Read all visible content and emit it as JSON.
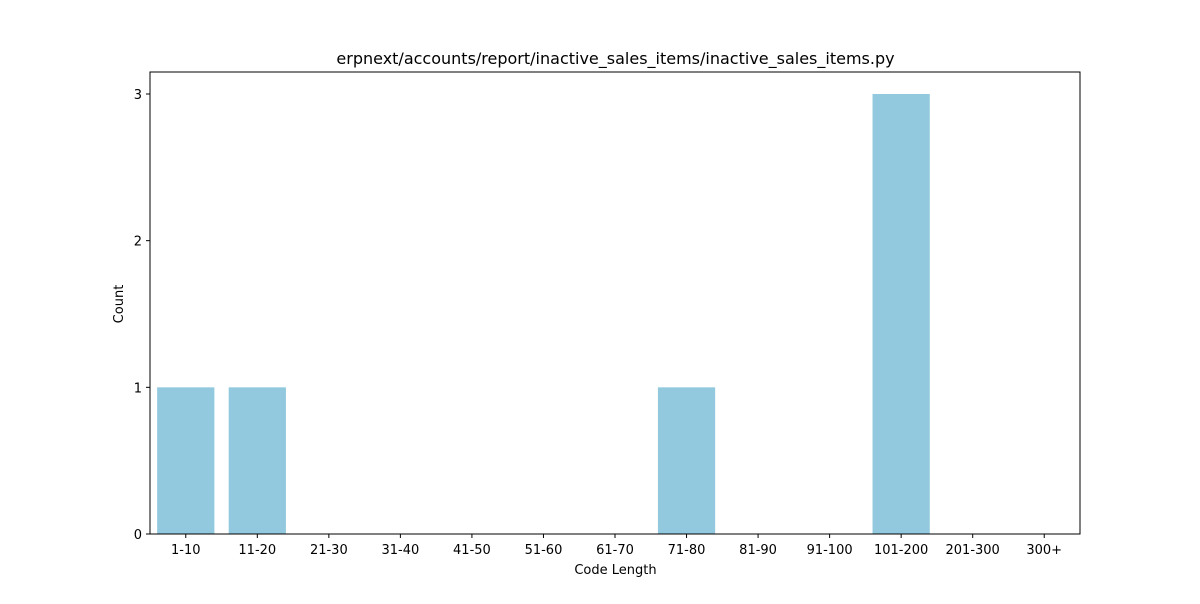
{
  "chart_data": {
    "type": "bar",
    "title": "erpnext/accounts/report/inactive_sales_items/inactive_sales_items.py",
    "xlabel": "Code Length",
    "ylabel": "Count",
    "categories": [
      "1-10",
      "11-20",
      "21-30",
      "31-40",
      "41-50",
      "51-60",
      "61-70",
      "71-80",
      "81-90",
      "91-100",
      "101-200",
      "201-300",
      "300+"
    ],
    "values": [
      1,
      1,
      0,
      0,
      0,
      0,
      0,
      1,
      0,
      0,
      3,
      0,
      0
    ],
    "ylim": [
      0,
      3.15
    ],
    "yticks": [
      0,
      1,
      2,
      3
    ],
    "grid": false,
    "bar_color": "#92c9de"
  }
}
